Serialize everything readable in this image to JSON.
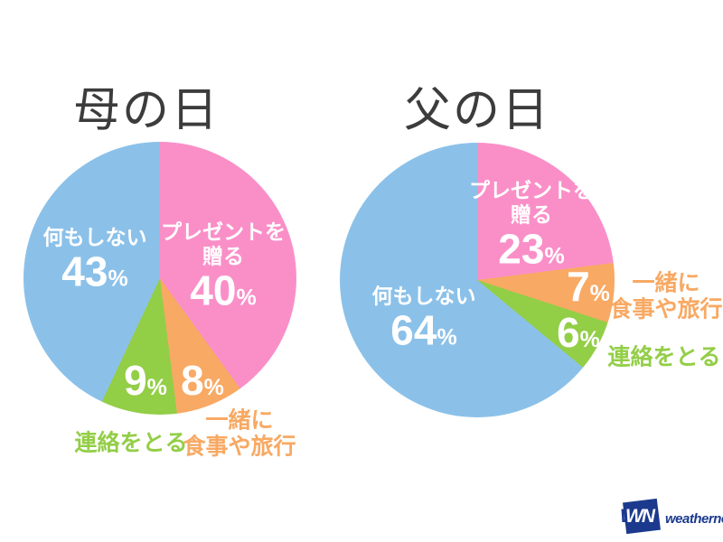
{
  "page": {
    "background": "#ffffff"
  },
  "percent_symbol": "%",
  "chart_data": [
    {
      "type": "pie",
      "title": "母の日",
      "start_angle": "12 o'clock, clockwise",
      "legend_position": "labels on slices and outside",
      "segments": [
        {
          "label": "プレゼントを贈る",
          "label_lines": [
            "プレゼントを",
            "贈る"
          ],
          "value": 40,
          "color": "#fa8fc8",
          "label_placement": "inside"
        },
        {
          "label": "一緒に食事や旅行",
          "label_lines": [
            "一緒に",
            "食事や旅行"
          ],
          "value": 8,
          "color": "#f8a963",
          "label_placement": "outside"
        },
        {
          "label": "連絡をとる",
          "label_lines": [
            "連絡をとる"
          ],
          "value": 9,
          "color": "#93ce47",
          "label_placement": "outside"
        },
        {
          "label": "何もしない",
          "label_lines": [
            "何もしない"
          ],
          "value": 43,
          "color": "#8bc1e9",
          "label_placement": "inside"
        }
      ]
    },
    {
      "type": "pie",
      "title": "父の日",
      "start_angle": "12 o'clock, clockwise",
      "legend_position": "labels on slices and outside",
      "segments": [
        {
          "label": "プレゼントを贈る",
          "label_lines": [
            "プレゼントを",
            "贈る"
          ],
          "value": 23,
          "color": "#fa8fc8",
          "label_placement": "inside"
        },
        {
          "label": "一緒に食事や旅行",
          "label_lines": [
            "一緒に",
            "食事や旅行"
          ],
          "value": 7,
          "color": "#f8a963",
          "label_placement": "outside"
        },
        {
          "label": "連絡をとる",
          "label_lines": [
            "連絡をとる"
          ],
          "value": 6,
          "color": "#93ce47",
          "label_placement": "outside"
        },
        {
          "label": "何もしない",
          "label_lines": [
            "何もしない"
          ],
          "value": 64,
          "color": "#8bc1e9",
          "label_placement": "inside"
        }
      ]
    }
  ],
  "title_color": "#3c3c3c",
  "logo": {
    "monogram": "WN",
    "wordmark": "weathernews",
    "color": "#1b3a8e"
  }
}
